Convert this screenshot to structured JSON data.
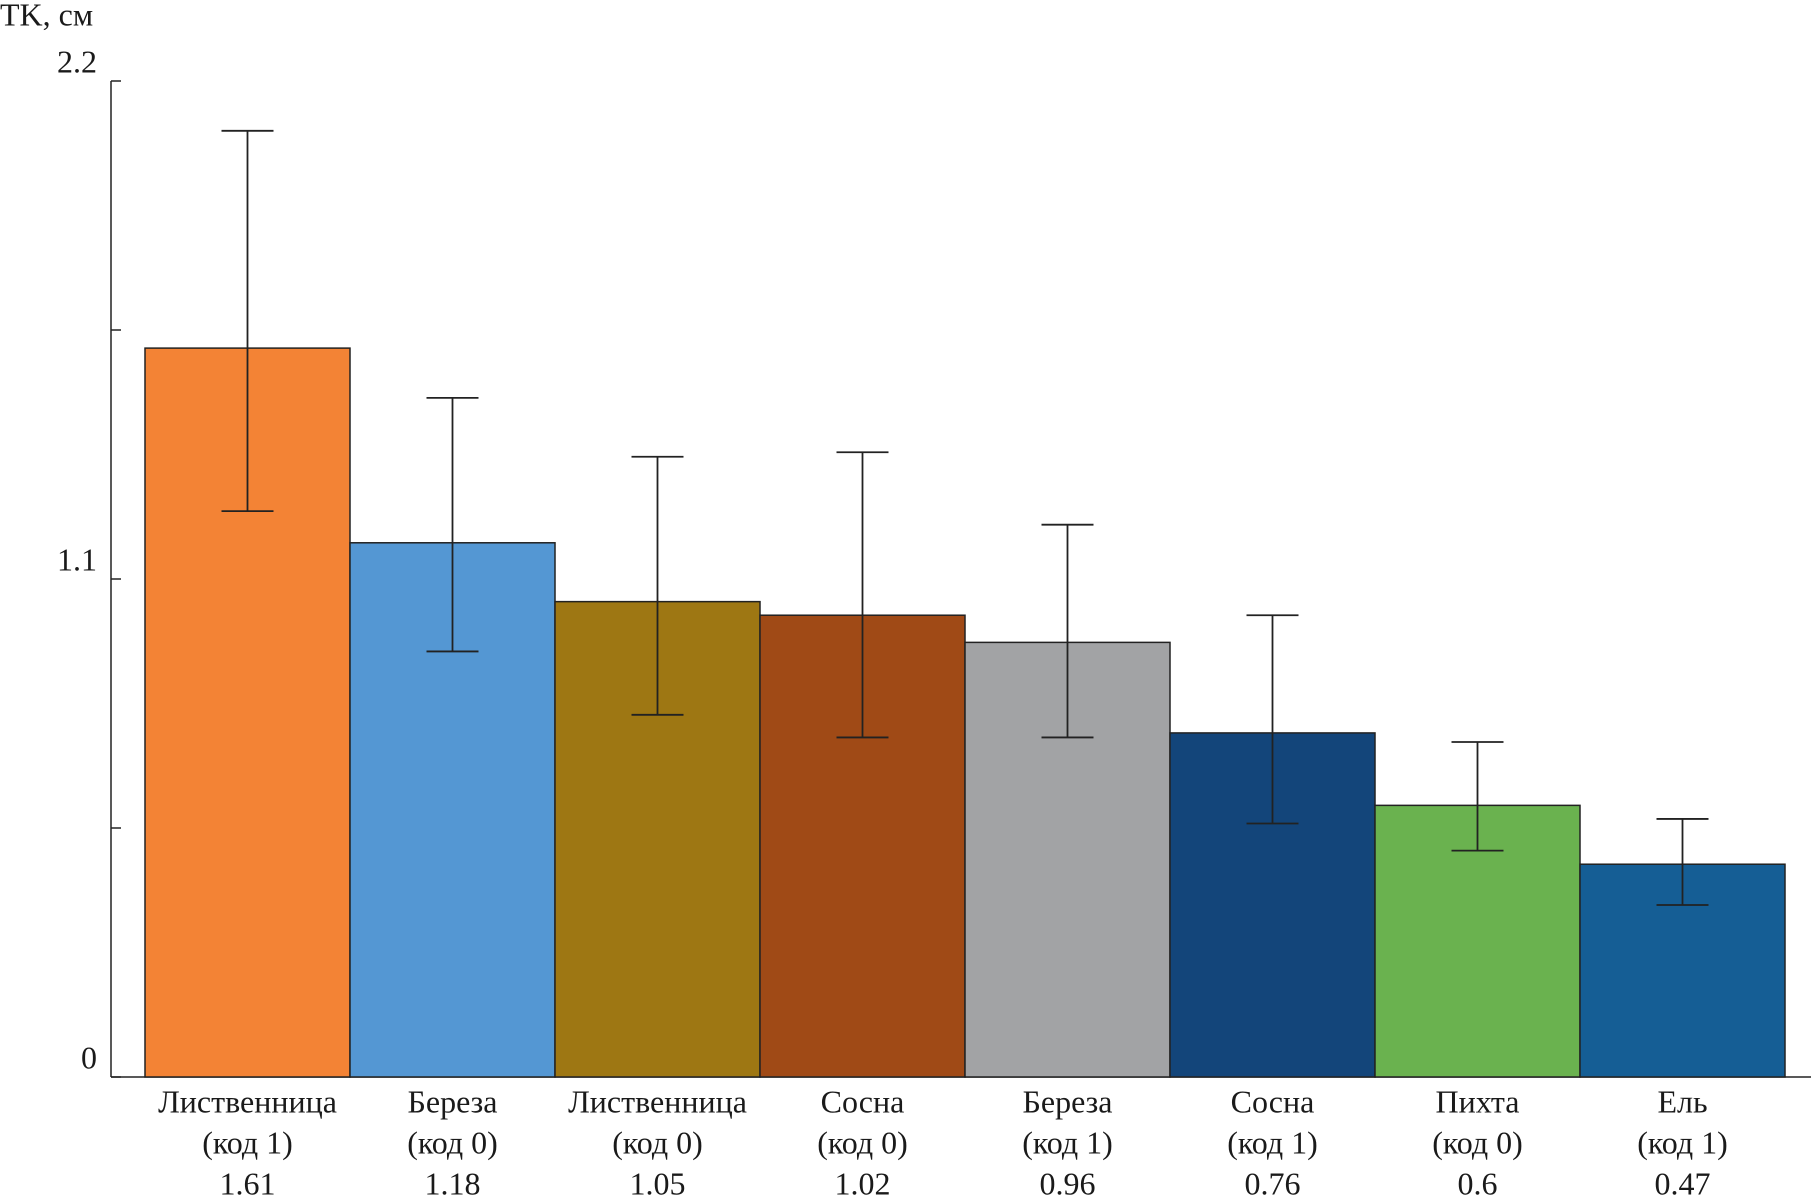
{
  "chart_data": {
    "type": "bar",
    "y_label": "TK, см",
    "categories": [
      [
        "Лиственница",
        "(код 1)"
      ],
      [
        "Береза",
        "(код 0)"
      ],
      [
        "Лиственница",
        "(код 0)"
      ],
      [
        "Сосна",
        "(код 0)"
      ],
      [
        "Береза",
        "(код 1)"
      ],
      [
        "Сосна",
        "(код 1)"
      ],
      [
        "Пихта",
        "(код 0)"
      ],
      [
        "Ель",
        "(код 1)"
      ]
    ],
    "values": [
      1.61,
      1.18,
      1.05,
      1.02,
      0.96,
      0.76,
      0.6,
      0.47
    ],
    "error_upper": [
      2.09,
      1.5,
      1.37,
      1.38,
      1.22,
      1.02,
      0.74,
      0.57
    ],
    "error_lower": [
      1.25,
      0.94,
      0.8,
      0.75,
      0.75,
      0.56,
      0.5,
      0.38
    ],
    "colors": [
      "#f38335",
      "#5497d3",
      "#9e7713",
      "#a04a16",
      "#a2a3a5",
      "#13457a",
      "#6ab24f",
      "#155e95"
    ],
    "ylim": [
      0,
      2.2
    ],
    "yticks": [
      0,
      1.1,
      2.2
    ],
    "yminorticks": [
      0.55,
      1.65
    ]
  }
}
